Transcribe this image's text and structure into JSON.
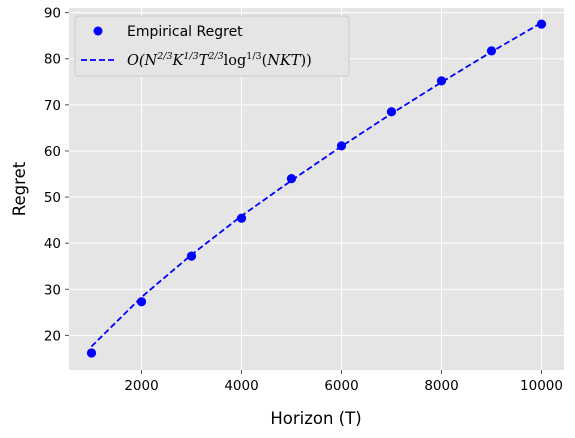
{
  "chart_data": {
    "type": "scatter",
    "title": "",
    "xlabel": "Horizon (T)",
    "ylabel": "Regret",
    "xlim": [
      550,
      10450
    ],
    "ylim": [
      12.5,
      91
    ],
    "xticks": [
      2000,
      4000,
      6000,
      8000,
      10000
    ],
    "xtick_labels": [
      "2000",
      "4000",
      "6000",
      "8000",
      "10000"
    ],
    "yticks": [
      20,
      30,
      40,
      50,
      60,
      70,
      80,
      90
    ],
    "ytick_labels": [
      "20",
      "30",
      "40",
      "50",
      "60",
      "70",
      "80",
      "90"
    ],
    "grid": true,
    "legend_position": "upper-left",
    "series": [
      {
        "name": "Empirical Regret",
        "style": "markers",
        "color": "#0000ff",
        "x": [
          1000,
          2000,
          3000,
          4000,
          5000,
          6000,
          7000,
          8000,
          9000,
          10000
        ],
        "y": [
          16.2,
          27.3,
          37.2,
          45.4,
          54.0,
          61.1,
          68.5,
          75.2,
          81.7,
          87.5
        ]
      },
      {
        "name": "O(N^{2/3}K^{1/3}T^{2/3}log^{1/3}(NKT))",
        "style": "dashed-line",
        "color": "#0000ff",
        "x": [
          1000,
          2000,
          3000,
          4000,
          5000,
          6000,
          7000,
          8000,
          9000,
          10000
        ],
        "y": [
          17.6,
          28.3,
          37.5,
          45.9,
          53.6,
          61.0,
          68.1,
          74.9,
          81.5,
          87.8
        ]
      }
    ]
  },
  "style": {
    "plot_background": "#e5e5e5",
    "grid_color": "#ffffff",
    "series_color": "#0000ff",
    "legend_background": "#e5e5e5",
    "legend_border": "#cccccc"
  }
}
